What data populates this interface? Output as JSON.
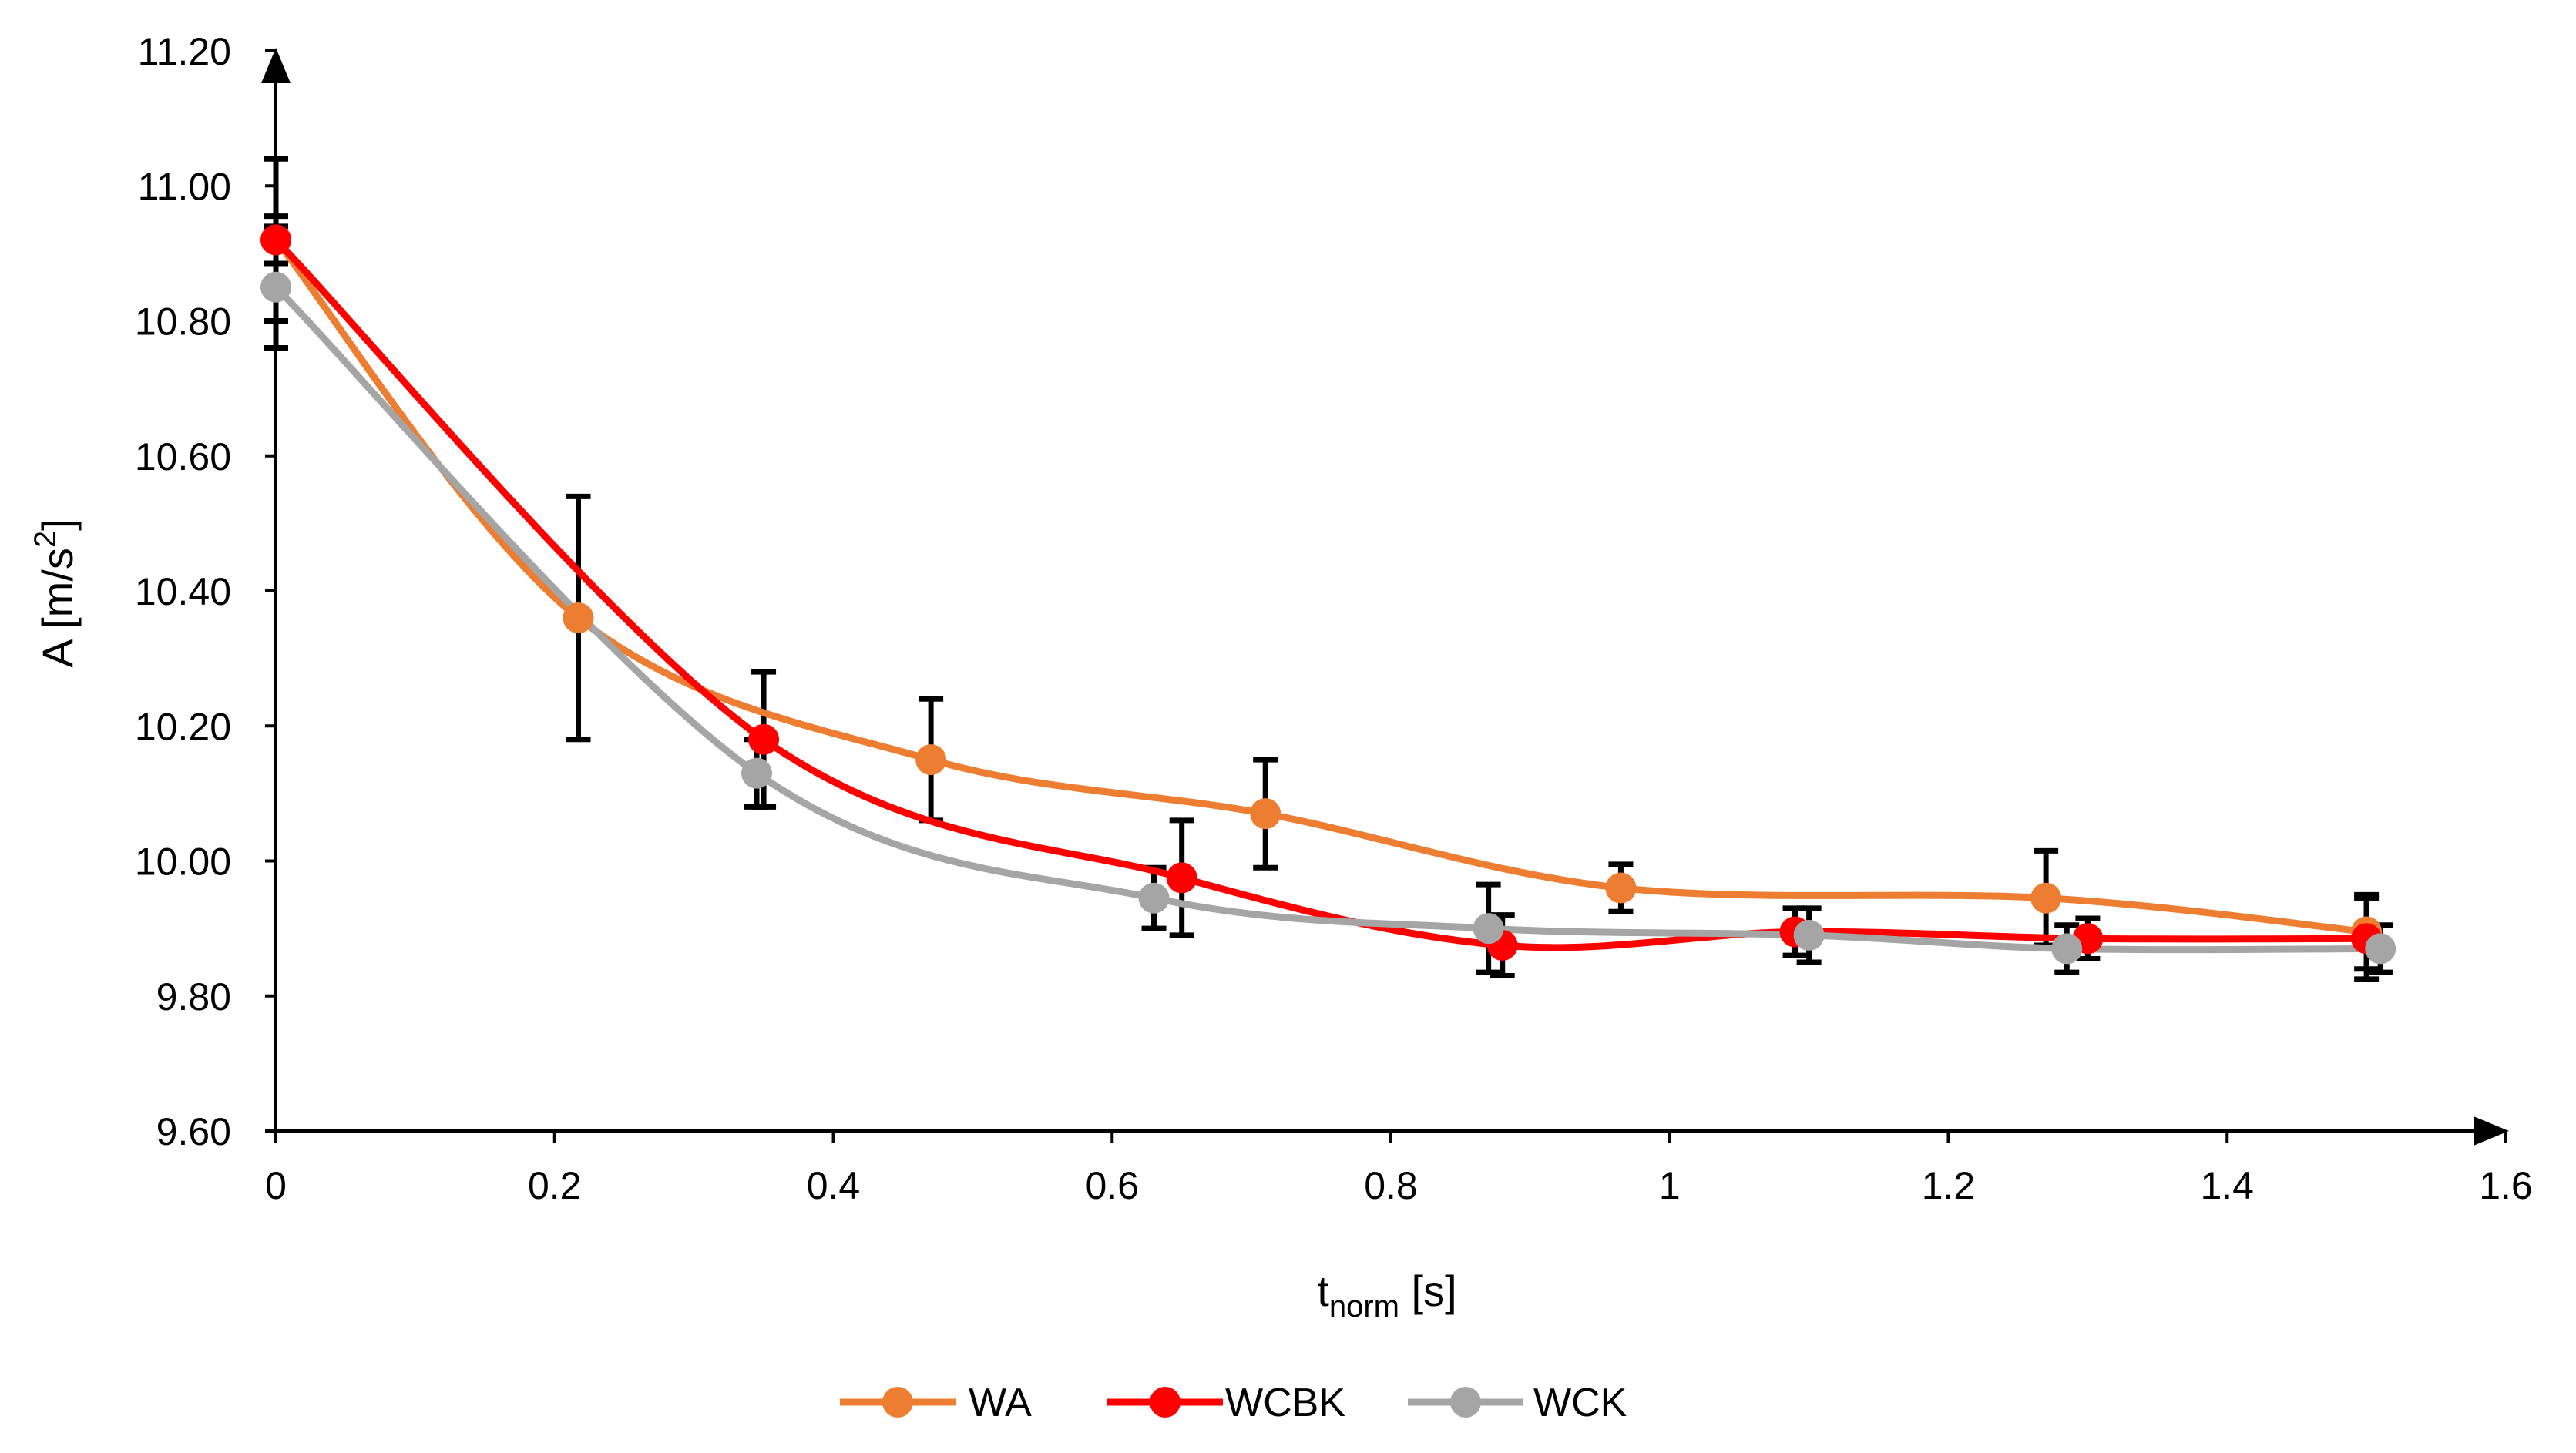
{
  "chart_data": {
    "type": "line",
    "title": "",
    "xlabel": {
      "main": "t",
      "sub": "norm",
      "unit": " [s]"
    },
    "ylabel": {
      "main": "A [m/s",
      "sup": "2",
      "end": "]"
    },
    "xlim": [
      0,
      1.6
    ],
    "ylim": [
      9.6,
      11.2
    ],
    "x_ticks": [
      "0",
      "0.2",
      "0.4",
      "0.6",
      "0.8",
      "1",
      "1.2",
      "1.4",
      "1.6"
    ],
    "y_ticks": [
      "9.60",
      "9.80",
      "10.00",
      "10.20",
      "10.40",
      "10.60",
      "10.80",
      "11.00",
      "11.20"
    ],
    "grid": false,
    "legend_position": "bottom-center",
    "series": [
      {
        "name": "WA",
        "color": "#ED7D31",
        "x": [
          0,
          0.217,
          0.47,
          0.71,
          0.965,
          1.27,
          1.5
        ],
        "y": [
          10.92,
          10.36,
          10.15,
          10.07,
          9.96,
          9.945,
          9.895
        ],
        "err": [
          0.12,
          0.18,
          0.09,
          0.08,
          0.035,
          0.07,
          0.055
        ]
      },
      {
        "name": "WCBK",
        "color": "#FF0000",
        "x": [
          0,
          0.35,
          0.65,
          0.88,
          1.09,
          1.3,
          1.5
        ],
        "y": [
          10.92,
          10.18,
          9.975,
          9.875,
          9.895,
          9.885,
          9.885
        ],
        "err": [
          0.035,
          0.1,
          0.085,
          0.045,
          0.035,
          0.03,
          0.06
        ]
      },
      {
        "name": "WCK",
        "color": "#A5A5A5",
        "x": [
          0,
          0.345,
          0.63,
          0.87,
          1.1,
          1.285,
          1.51
        ],
        "y": [
          10.85,
          10.13,
          9.945,
          9.9,
          9.89,
          9.87,
          9.87
        ],
        "err": [
          0.09,
          0.05,
          0.045,
          0.065,
          0.04,
          0.035,
          0.035
        ]
      }
    ]
  }
}
